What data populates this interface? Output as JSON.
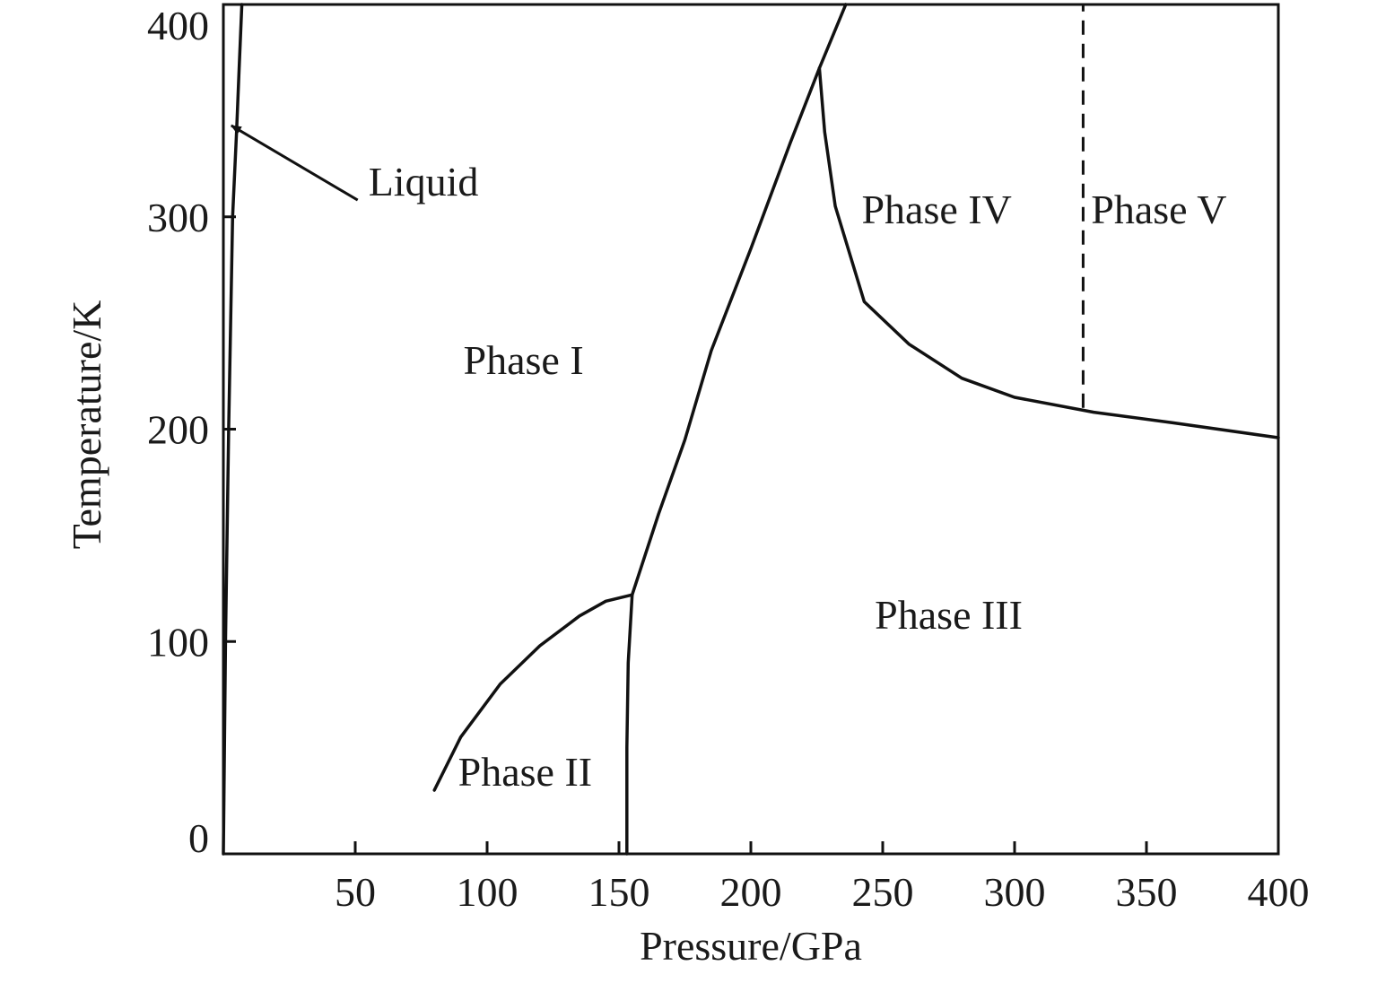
{
  "chart_data": {
    "type": "line",
    "title": "",
    "xlabel": "Pressure/GPa",
    "ylabel": "Temperature/K",
    "xlim": [
      0,
      400
    ],
    "ylim": [
      0,
      400
    ],
    "x_ticks": [
      50,
      100,
      150,
      200,
      250,
      300,
      350,
      400
    ],
    "y_ticks": [
      0,
      100,
      200,
      300,
      400
    ],
    "grid": false,
    "legend": "none",
    "series": [
      {
        "style": "solid",
        "points": [
          [
            0,
            0
          ],
          [
            0.8,
            100
          ],
          [
            2,
            200
          ],
          [
            3.5,
            300
          ],
          [
            5,
            340
          ],
          [
            6,
            370
          ],
          [
            7,
            400
          ]
        ]
      },
      {
        "style": "solid",
        "points": [
          [
            80,
            30
          ],
          [
            90,
            55
          ],
          [
            105,
            80
          ],
          [
            120,
            98
          ],
          [
            135,
            112
          ],
          [
            145,
            119
          ],
          [
            155,
            122
          ]
        ]
      },
      {
        "style": "solid",
        "points": [
          [
            153,
            0
          ],
          [
            153,
            50
          ],
          [
            153.5,
            90
          ],
          [
            155,
            122
          ]
        ]
      },
      {
        "style": "solid",
        "points": [
          [
            155,
            122
          ],
          [
            165,
            160
          ],
          [
            175,
            195
          ],
          [
            185,
            237
          ],
          [
            200,
            285
          ],
          [
            215,
            335
          ],
          [
            226,
            370
          ],
          [
            236,
            400
          ]
        ]
      },
      {
        "style": "solid",
        "points": [
          [
            226,
            370
          ],
          [
            228,
            340
          ],
          [
            232,
            305
          ],
          [
            243,
            260
          ],
          [
            260,
            240
          ],
          [
            280,
            224
          ],
          [
            300,
            215
          ],
          [
            330,
            208
          ],
          [
            360,
            203
          ],
          [
            400,
            196
          ]
        ]
      },
      {
        "style": "dashed",
        "points": [
          [
            326,
            210
          ],
          [
            326,
            400
          ]
        ]
      }
    ],
    "annotations": [
      {
        "text": "Liquid",
        "x": 55,
        "y": 310,
        "arrow_to": [
          3,
          343
        ]
      },
      {
        "text": "Phase I",
        "x": 91,
        "y": 226
      },
      {
        "text": "Phase II",
        "x": 89,
        "y": 32
      },
      {
        "text": "Phase III",
        "x": 247,
        "y": 106
      },
      {
        "text": "Phase IV",
        "x": 242,
        "y": 297
      },
      {
        "text": "Phase V",
        "x": 329,
        "y": 297
      }
    ]
  }
}
